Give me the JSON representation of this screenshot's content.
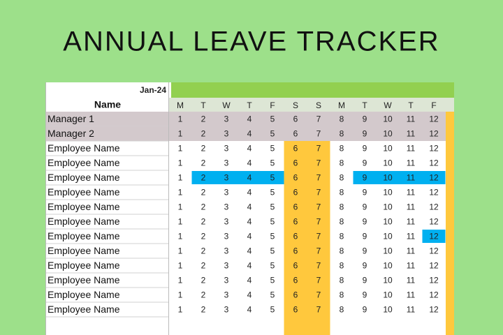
{
  "header": {
    "title": "ANNUAL LEAVE TRACKER"
  },
  "table": {
    "month": "Jan-24",
    "name_header": "Name",
    "days": [
      "M",
      "T",
      "W",
      "T",
      "F",
      "S",
      "S",
      "M",
      "T",
      "W",
      "T",
      "F"
    ],
    "dates": [
      1,
      2,
      3,
      4,
      5,
      6,
      7,
      8,
      9,
      10,
      11,
      12
    ],
    "weekend_letter": "S",
    "colors": {
      "page": "#9de08a",
      "month_bar": "#92d050",
      "day_header": "#dde6d5",
      "manager": "#d3c9cc",
      "weekend": "#ffc83d",
      "leave": "#00b0f0"
    },
    "rows": [
      {
        "name": "Manager 1",
        "manager": true,
        "leave": []
      },
      {
        "name": "Manager 2",
        "manager": true,
        "leave": []
      },
      {
        "name": "Employee Name",
        "manager": false,
        "leave": []
      },
      {
        "name": "Employee Name",
        "manager": false,
        "leave": []
      },
      {
        "name": "Employee Name",
        "manager": false,
        "leave": [
          2,
          3,
          4,
          5,
          9,
          10,
          11,
          12
        ]
      },
      {
        "name": "Employee Name",
        "manager": false,
        "leave": []
      },
      {
        "name": "Employee Name",
        "manager": false,
        "leave": []
      },
      {
        "name": "Employee Name",
        "manager": false,
        "leave": []
      },
      {
        "name": "Employee Name",
        "manager": false,
        "leave": [
          12
        ]
      },
      {
        "name": "Employee Name",
        "manager": false,
        "leave": []
      },
      {
        "name": "Employee Name",
        "manager": false,
        "leave": []
      },
      {
        "name": "Employee Name",
        "manager": false,
        "leave": []
      },
      {
        "name": "Employee Name",
        "manager": false,
        "leave": []
      },
      {
        "name": "Employee Name",
        "manager": false,
        "leave": []
      }
    ]
  }
}
